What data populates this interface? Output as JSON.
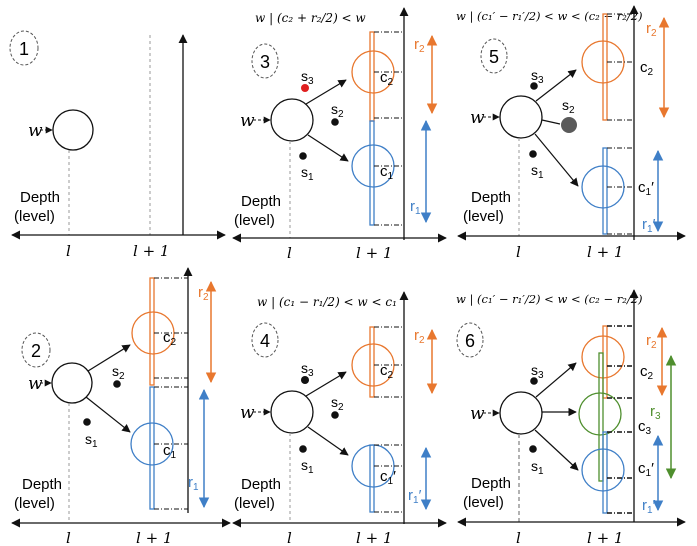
{
  "colors": {
    "orange": "#e8772e",
    "blue": "#3f7fc7",
    "green": "#4f8f2e",
    "red": "#e02020",
    "gray": "#5a5a5a",
    "black": "#111111",
    "dash": "#999999"
  },
  "common": {
    "w": "w",
    "depth": "Depth",
    "level": "(level)",
    "l": "l",
    "l1": "l + 1",
    "s1": "s",
    "s2": "s",
    "s3": "s",
    "sub1": "1",
    "sub2": "2",
    "sub3": "3",
    "c": "c",
    "r": "r",
    "prime": "′"
  },
  "panels": [
    {
      "number": "1",
      "condition": ""
    },
    {
      "number": "2",
      "condition": ""
    },
    {
      "number": "3",
      "condition": "w | (c₂ + r₂/2) < w"
    },
    {
      "number": "4",
      "condition": "w | (c₁ − r₁/2) < w < c₁"
    },
    {
      "number": "5",
      "condition": "w | (c₁′ − r₁′/2) < w < (c₂ − r₂/2)"
    },
    {
      "number": "6",
      "condition": "w | (c₁′ − r₁′/2) < w < (c₂ − r₂/2)"
    }
  ]
}
